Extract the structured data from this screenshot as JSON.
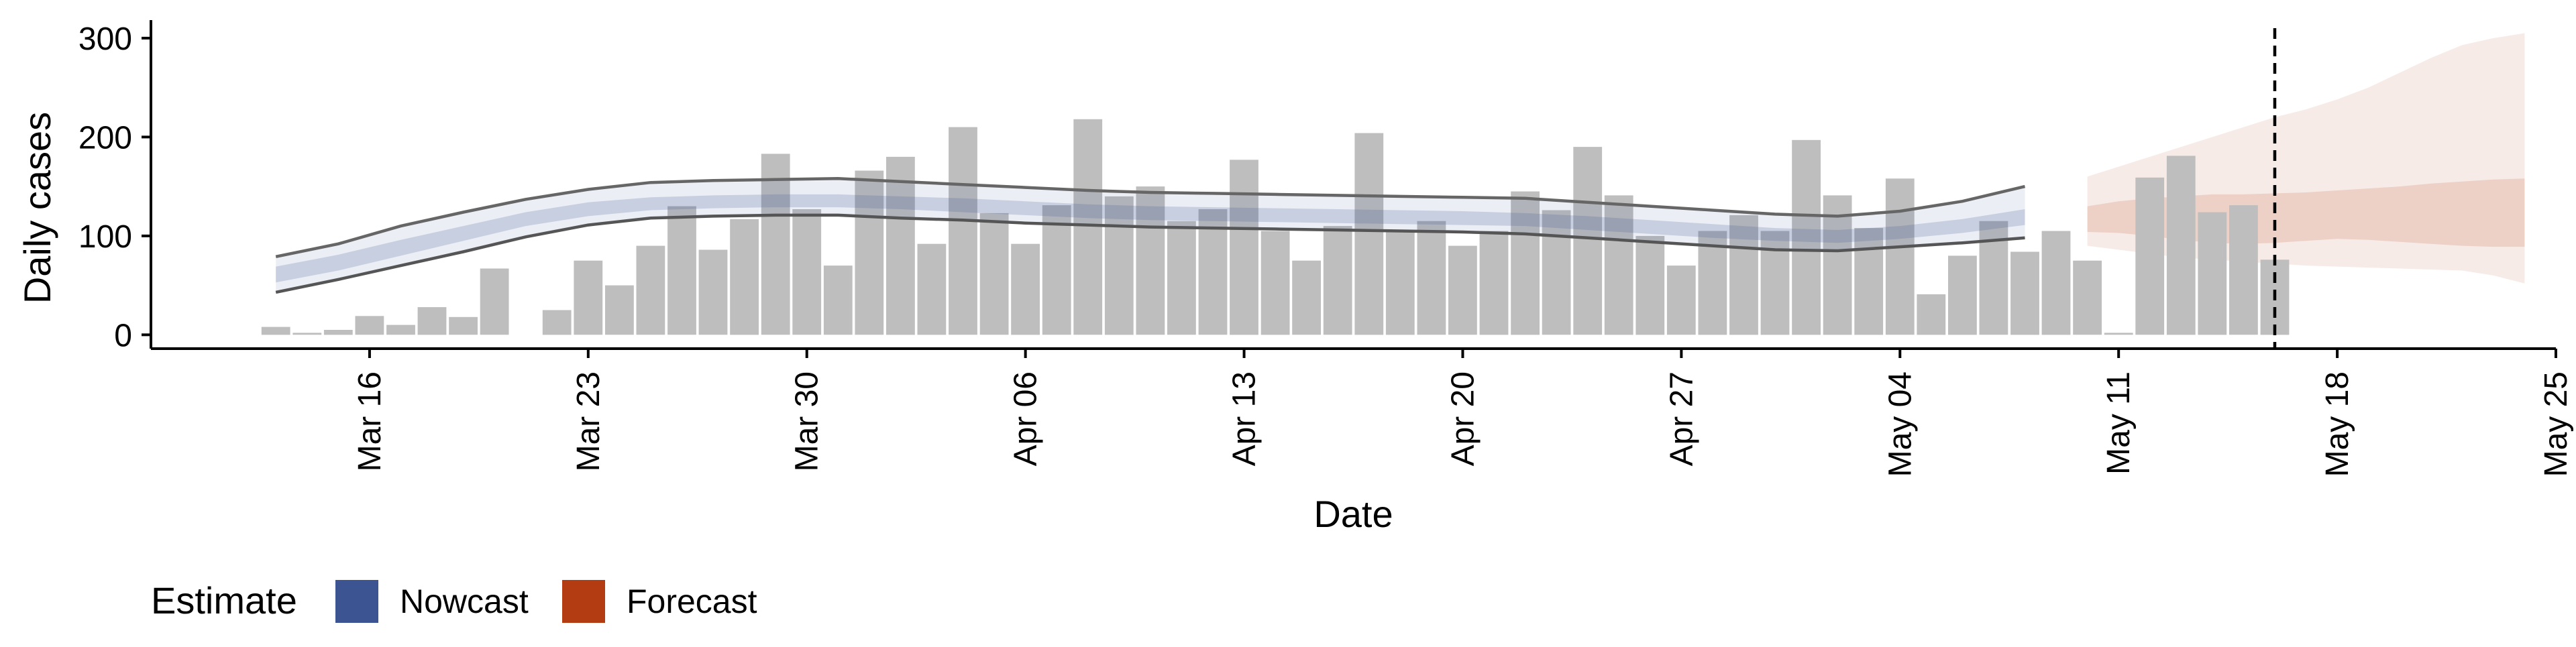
{
  "chart_data": {
    "type": "bar",
    "xlabel": "Date",
    "ylabel": "Daily cases",
    "ylim": [
      -14,
      325
    ],
    "y_ticks": [
      0,
      100,
      200,
      300
    ],
    "y_tick_labels": [
      "0",
      "100",
      "200",
      "300"
    ],
    "x_ticks": [
      "2020-03-16",
      "2020-03-23",
      "2020-03-30",
      "2020-04-06",
      "2020-04-13",
      "2020-04-20",
      "2020-04-27",
      "2020-05-04",
      "2020-05-11",
      "2020-05-18",
      "2020-05-25"
    ],
    "x_tick_labels": [
      "Mar 16",
      "Mar 23",
      "Mar 30",
      "Apr 06",
      "Apr 13",
      "Apr 20",
      "Apr 27",
      "May 04",
      "May 11",
      "May 18",
      "May 25"
    ],
    "xlim": [
      "2020-03-09",
      "2020-05-25"
    ],
    "bars": {
      "dates": [
        "2020-03-13",
        "2020-03-14",
        "2020-03-15",
        "2020-03-16",
        "2020-03-17",
        "2020-03-18",
        "2020-03-19",
        "2020-03-20",
        "2020-03-21",
        "2020-03-22",
        "2020-03-23",
        "2020-03-24",
        "2020-03-25",
        "2020-03-26",
        "2020-03-27",
        "2020-03-28",
        "2020-03-29",
        "2020-03-30",
        "2020-03-31",
        "2020-04-01",
        "2020-04-02",
        "2020-04-03",
        "2020-04-04",
        "2020-04-05",
        "2020-04-06",
        "2020-04-07",
        "2020-04-08",
        "2020-04-09",
        "2020-04-10",
        "2020-04-11",
        "2020-04-12",
        "2020-04-13",
        "2020-04-14",
        "2020-04-15",
        "2020-04-16",
        "2020-04-17",
        "2020-04-18",
        "2020-04-19",
        "2020-04-20",
        "2020-04-21",
        "2020-04-22",
        "2020-04-23",
        "2020-04-24",
        "2020-04-25",
        "2020-04-26",
        "2020-04-27",
        "2020-04-28",
        "2020-04-29",
        "2020-04-30",
        "2020-05-01",
        "2020-05-02",
        "2020-05-03",
        "2020-05-04",
        "2020-05-05",
        "2020-05-06",
        "2020-05-07",
        "2020-05-08",
        "2020-05-09",
        "2020-05-10",
        "2020-05-11",
        "2020-05-12",
        "2020-05-13",
        "2020-05-14",
        "2020-05-15",
        "2020-05-16",
        "2020-05-17"
      ],
      "values": [
        8,
        2,
        5,
        19,
        10,
        28,
        18,
        67,
        0,
        25,
        75,
        50,
        90,
        130,
        86,
        117,
        183,
        127,
        70,
        166,
        180,
        92,
        210,
        123,
        92,
        131,
        218,
        140,
        150,
        115,
        127,
        177,
        105,
        75,
        110,
        204,
        104,
        115,
        90,
        105,
        145,
        126,
        190,
        141,
        100,
        70,
        105,
        121,
        105,
        197,
        141,
        108,
        158,
        41,
        80,
        115,
        84,
        105,
        75,
        2,
        159,
        181,
        124,
        131,
        76,
        0
      ],
      "color": "#bebebe"
    },
    "nowcast": {
      "dates": [
        "2020-03-13",
        "2020-03-15",
        "2020-03-17",
        "2020-03-19",
        "2020-03-21",
        "2020-03-23",
        "2020-03-25",
        "2020-03-27",
        "2020-03-29",
        "2020-03-31",
        "2020-04-02",
        "2020-04-04",
        "2020-04-06",
        "2020-04-08",
        "2020-04-10",
        "2020-04-12",
        "2020-04-14",
        "2020-04-16",
        "2020-04-18",
        "2020-04-20",
        "2020-04-22",
        "2020-04-24",
        "2020-04-26",
        "2020-04-28",
        "2020-04-30",
        "2020-05-02",
        "2020-05-04",
        "2020-05-06",
        "2020-05-08"
      ],
      "outer_upper": [
        79,
        92,
        110,
        124,
        137,
        147,
        154,
        156,
        157,
        158,
        155,
        152,
        149,
        146,
        144,
        143,
        142,
        141,
        140,
        139,
        138,
        134,
        130,
        126,
        122,
        120,
        125,
        135,
        150
      ],
      "outer_lower": [
        43,
        56,
        70,
        84,
        99,
        111,
        118,
        120,
        121,
        121,
        118,
        116,
        113,
        111,
        109,
        108,
        107,
        106,
        105,
        104,
        102,
        98,
        94,
        90,
        86,
        85,
        89,
        93,
        98
      ],
      "inner_upper": [
        69,
        81,
        96,
        110,
        124,
        134,
        139,
        141,
        142,
        142,
        140,
        138,
        135,
        132,
        130,
        129,
        128,
        127,
        126,
        125,
        123,
        120,
        116,
        112,
        108,
        106,
        110,
        117,
        127
      ],
      "inner_lower": [
        53,
        65,
        80,
        95,
        110,
        120,
        126,
        128,
        129,
        129,
        127,
        124,
        121,
        118,
        116,
        115,
        114,
        113,
        112,
        111,
        110,
        106,
        102,
        98,
        95,
        93,
        97,
        103,
        111
      ],
      "color": "#3c5491"
    },
    "forecast": {
      "dates": [
        "2020-05-10",
        "2020-05-11",
        "2020-05-12",
        "2020-05-13",
        "2020-05-14",
        "2020-05-15",
        "2020-05-16",
        "2020-05-17",
        "2020-05-18",
        "2020-05-19",
        "2020-05-20",
        "2020-05-21",
        "2020-05-22",
        "2020-05-23",
        "2020-05-24"
      ],
      "outer_upper": [
        160,
        170,
        180,
        190,
        200,
        210,
        220,
        228,
        238,
        250,
        265,
        280,
        293,
        300,
        305
      ],
      "outer_lower": [
        90,
        86,
        82,
        78,
        76,
        74,
        72,
        70,
        69,
        68,
        67,
        66,
        65,
        60,
        52
      ],
      "inner_upper": [
        130,
        135,
        138,
        140,
        142,
        142,
        143,
        144,
        146,
        148,
        150,
        153,
        155,
        157,
        158
      ],
      "inner_lower": [
        104,
        103,
        100,
        96,
        93,
        92,
        93,
        95,
        97,
        96,
        94,
        92,
        90,
        89,
        89
      ],
      "color": "#b33c12"
    },
    "reference_line": {
      "date": "2020-05-16",
      "style": "dashed"
    },
    "grid": false,
    "legend": {
      "title": "Estimate",
      "placement": "bottom-left",
      "items": [
        {
          "label": "Nowcast",
          "color": "#3c5491"
        },
        {
          "label": "Forecast",
          "color": "#b33c12"
        }
      ]
    }
  }
}
